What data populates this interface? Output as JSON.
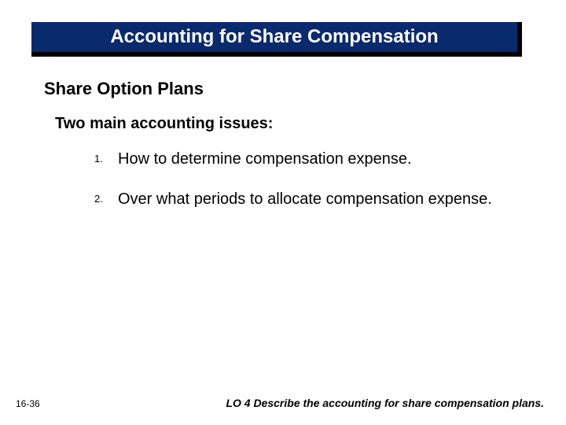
{
  "colors": {
    "banner_bg": "#0a2a6e",
    "banner_shadow": "#000000",
    "banner_text": "#ffffff",
    "body_text": "#000000",
    "page_bg": "#ffffff"
  },
  "title": "Accounting for Share Compensation",
  "subheading": "Share Option Plans",
  "intro": "Two main accounting issues:",
  "list": [
    {
      "marker": "1.",
      "text": "How to determine compensation expense."
    },
    {
      "marker": "2.",
      "text": "Over what periods to allocate compensation expense."
    }
  ],
  "page_number": "16-36",
  "learning_objective": "LO 4  Describe the accounting for share compensation plans."
}
